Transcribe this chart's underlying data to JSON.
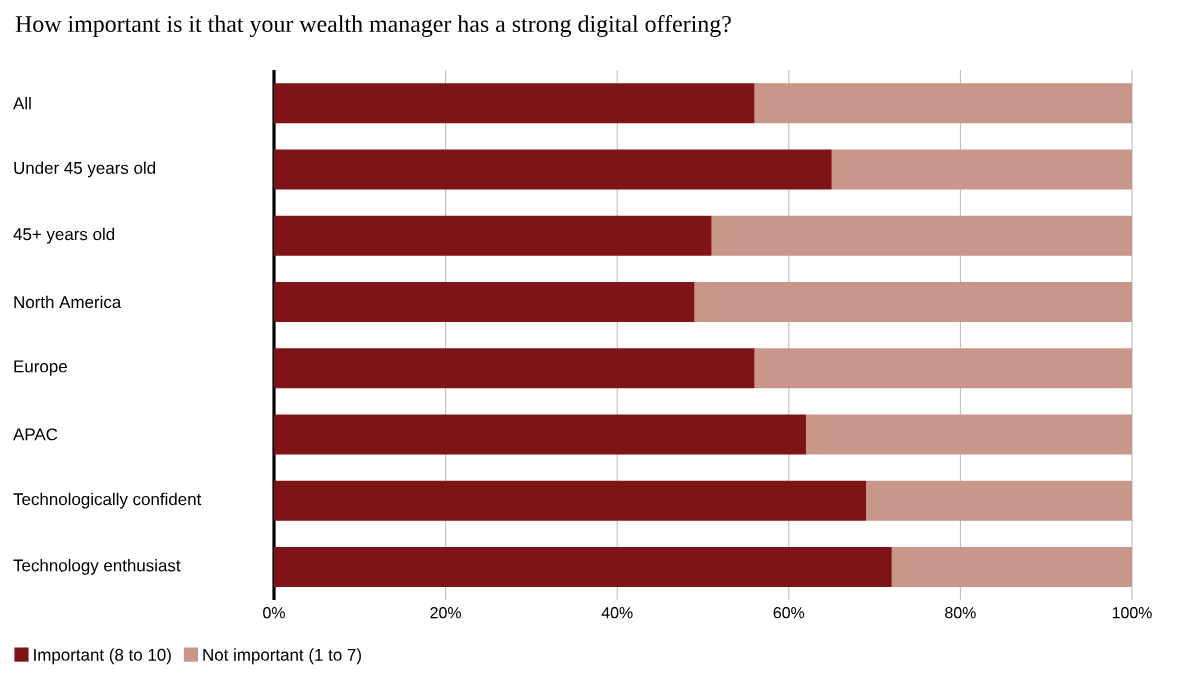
{
  "chart_data": {
    "type": "bar",
    "orientation": "horizontal",
    "stacked": true,
    "title": "How important is it that your wealth manager has a strong digital offering?",
    "categories": [
      "All",
      "Under 45 years old",
      "45+ years old",
      "North America",
      "Europe",
      "APAC",
      "Technologically confident",
      "Technology enthusiast"
    ],
    "series": [
      {
        "name": "Important (8 to 10)",
        "color": "#7f1416",
        "values": [
          56,
          65,
          51,
          49,
          56,
          62,
          69,
          72
        ]
      },
      {
        "name": "Not important (1 to 7)",
        "color": "#c9968a",
        "values": [
          44,
          35,
          49,
          51,
          44,
          38,
          31,
          28
        ]
      }
    ],
    "xlim": [
      0,
      100
    ],
    "xticks": [
      {
        "value": 0,
        "label": "0%"
      },
      {
        "value": 20,
        "label": "20%"
      },
      {
        "value": 40,
        "label": "40%"
      },
      {
        "value": 60,
        "label": "60%"
      },
      {
        "value": 80,
        "label": "80%"
      },
      {
        "value": 100,
        "label": "100%"
      }
    ],
    "grid": "x",
    "legend": "bottom left"
  }
}
